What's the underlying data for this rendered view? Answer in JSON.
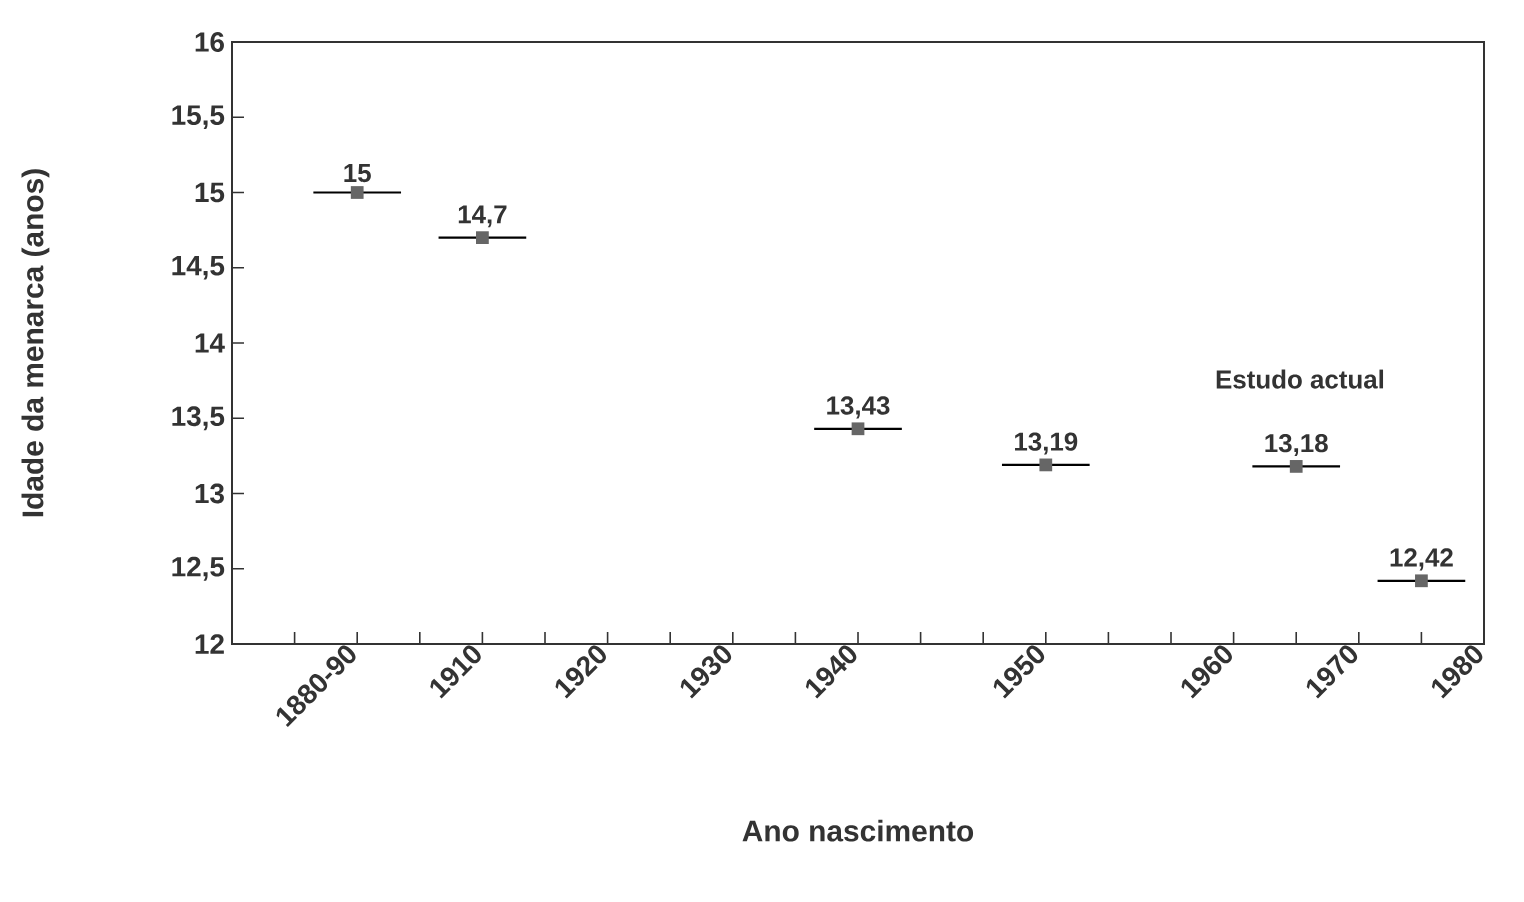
{
  "chart_data": {
    "type": "scatter",
    "xlabel": "Ano nascimento",
    "ylabel": "Idade da menarca (anos)",
    "categories": [
      null,
      "1880-90",
      null,
      "1910",
      null,
      "1920",
      null,
      "1930",
      null,
      "1940",
      null,
      null,
      "1950",
      null,
      null,
      "1960",
      null,
      "1970",
      null,
      "1980"
    ],
    "values": [
      null,
      15,
      null,
      14.7,
      null,
      null,
      null,
      null,
      null,
      13.43,
      null,
      null,
      13.19,
      null,
      null,
      null,
      13.18,
      null,
      12.42,
      null
    ],
    "value_labels": [
      null,
      "15",
      null,
      "14,7",
      null,
      null,
      null,
      null,
      null,
      "13,43",
      null,
      null,
      "13,19",
      null,
      null,
      null,
      "13,18",
      null,
      "12,42",
      null
    ],
    "color": "#666666",
    "marker": "square",
    "annotations": [
      "Estudo actual"
    ],
    "ylim": [
      12,
      16
    ],
    "yticks": [
      12,
      {
        "value": 12.5,
        "label": "12,5"
      },
      13,
      {
        "value": 13.5,
        "label": "13,5"
      },
      14,
      {
        "value": 14.5,
        "label": "14,5"
      },
      15,
      {
        "value": 15.5,
        "label": "15,5"
      },
      16
    ]
  }
}
